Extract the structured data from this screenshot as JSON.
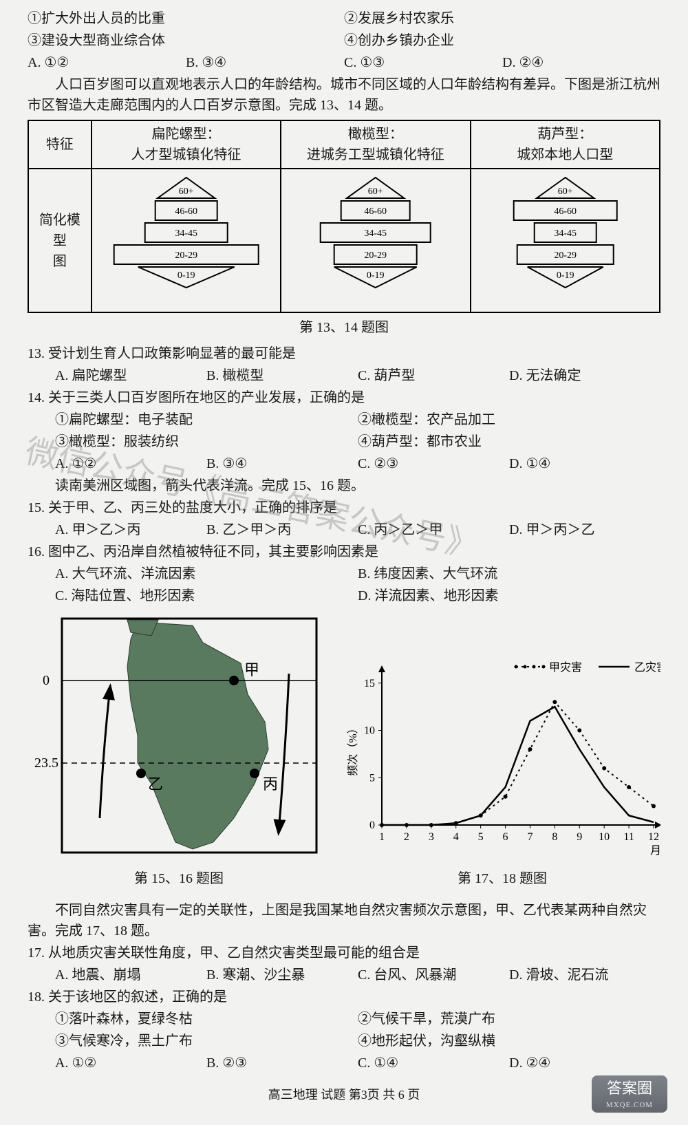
{
  "q12": {
    "s1": "①扩大外出人员的比重",
    "s2": "②发展乡村农家乐",
    "s3": "③建设大型商业综合体",
    "s4": "④创办乡镇办企业",
    "a": "A. ①②",
    "b": "B. ③④",
    "c": "C. ①③",
    "d": "D. ②④"
  },
  "intro1": "人口百岁图可以直观地表示人口的年龄结构。城市不同区域的人口年龄结构有差异。下图是浙江杭州市区智造大走廊范围内的人口百岁示意图。完成 13、14 题。",
  "pyr_table": {
    "row1c1": "特征",
    "row1c2a": "扁陀螺型：",
    "row1c2b": "人才型城镇化特征",
    "row1c3a": "橄榄型：",
    "row1c3b": "进城务工型城镇化特征",
    "row1c4a": "葫芦型：",
    "row1c4b": "城郊本地人口型",
    "row2c1a": "简化模型",
    "row2c1b": "图",
    "labels": [
      "60+",
      "46-60",
      "34-45",
      "20-29",
      "0-19"
    ],
    "widths": {
      "A": [
        50,
        90,
        120,
        210,
        70
      ],
      "B": [
        50,
        100,
        160,
        120,
        60
      ],
      "C": [
        50,
        150,
        90,
        140,
        55
      ]
    },
    "stroke": "#000",
    "fill": "#fff"
  },
  "cap1314": "第 13、14 题图",
  "q13": {
    "stem": "13. 受计划生育人口政策影响显著的最可能是",
    "a": "A. 扁陀螺型",
    "b": "B. 橄榄型",
    "c": "C. 葫芦型",
    "d": "D. 无法确定"
  },
  "q14": {
    "stem": "14. 关于三类人口百岁图所在地区的产业发展，正确的是",
    "s1": "①扁陀螺型：电子装配",
    "s2": "②橄榄型：农产品加工",
    "s3": "③橄榄型：服装纺织",
    "s4": "④葫芦型：都市农业",
    "a": "A. ①②",
    "b": "B. ③④",
    "c": "C. ②③",
    "d": "D. ①④"
  },
  "intro2": "读南美洲区域图，箭头代表洋流。完成 15、16 题。",
  "q15": {
    "stem": "15. 关于甲、乙、丙三处的盐度大小，正确的排序是",
    "a": "A. 甲＞乙＞丙",
    "b": "B. 乙＞甲＞丙",
    "c": "C. 丙＞乙＞甲",
    "d": "D. 甲＞丙＞乙"
  },
  "q16": {
    "stem": "16. 图中乙、丙沿岸自然植被特征不同，其主要影响因素是",
    "a": "A. 大气环流、洋流因素",
    "b": "B. 纬度因素、大气环流",
    "c": "C. 海陆位置、地形因素",
    "d": "D. 洋流因素、地形因素"
  },
  "map": {
    "labels": {
      "jia": "甲",
      "yi": "乙",
      "bing": "丙",
      "lat0": "0",
      "lat235": "23.5"
    },
    "land_fill": "#5a7a5f",
    "sea_fill": "#ffffff",
    "stroke": "#000"
  },
  "cap1516": "第 15、16 题图",
  "chart": {
    "legend_jia": "甲灾害",
    "legend_yi": "乙灾害",
    "ylabel": "频次（%）",
    "xlabel": "月份",
    "yticks": [
      0,
      5,
      10,
      15
    ],
    "xticks": [
      1,
      2,
      3,
      4,
      5,
      6,
      7,
      8,
      9,
      10,
      11,
      12
    ],
    "ylim": [
      0,
      16
    ],
    "series_jia": [
      0,
      0,
      0,
      0.2,
      1,
      3,
      8,
      13,
      10,
      6,
      4,
      2
    ],
    "series_yi": [
      0,
      0,
      0,
      0.2,
      1,
      4,
      11,
      12.5,
      8,
      4,
      1,
      0.3
    ],
    "color_jia": "#000",
    "color_yi": "#000",
    "bg": "#ffffff00"
  },
  "cap1718": "第 17、18 题图",
  "intro3": "不同自然灾害具有一定的关联性，上图是我国某地自然灾害频次示意图，甲、乙代表某两种自然灾害。完成 17、18 题。",
  "q17": {
    "stem": "17. 从地质灾害关联性角度，甲、乙自然灾害类型最可能的组合是",
    "a": "A. 地震、崩塌",
    "b": "B. 寒潮、沙尘暴",
    "c": "C. 台风、风暴潮",
    "d": "D. 滑坡、泥石流"
  },
  "q18": {
    "stem": "18. 关于该地区的叙述，正确的是",
    "s1": "①落叶森林，夏绿冬枯",
    "s2": "②气候干旱，荒漠广布",
    "s3": "③气候寒冷，黑土广布",
    "s4": "④地形起伏，沟壑纵横",
    "a": "A. ①②",
    "b": "B. ②③",
    "c": "C. ①④",
    "d": "D. ②④"
  },
  "footer": "高三地理  试题  第3页 共 6 页",
  "watermark": "微信公众号《高三答案公众号》",
  "logo": {
    "t1": "答案圈",
    "t2": "MXQE.COM"
  }
}
